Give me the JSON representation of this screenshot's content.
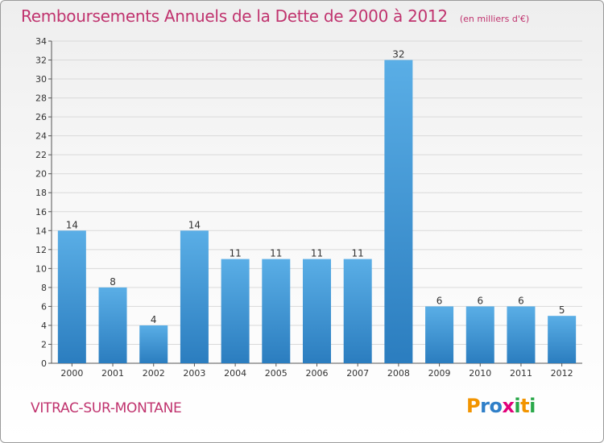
{
  "header": {
    "title": "Remboursements Annuels de la Dette de 2000 à 2012",
    "unit": "(en milliers d'€)"
  },
  "footer": {
    "commune": "VITRAC-SUR-MONTANE",
    "logo_text": "Proxiti",
    "logo_letters": [
      "P",
      "r",
      "o",
      "x",
      "i",
      "t",
      "i"
    ],
    "logo_colors": [
      "#f29400",
      "#2f7fc8",
      "#2f7fc8",
      "#e2007a",
      "#2aa84a",
      "#f29400",
      "#2aa84a"
    ]
  },
  "colors": {
    "bar_light": "#5aaee6",
    "bar_dark": "#2b7dbf",
    "accent": "#c0336e",
    "grid": "#d9d9d9"
  },
  "chart_data": {
    "type": "bar",
    "title": "Remboursements Annuels de la Dette de 2000 à 2012",
    "subtitle": "(en milliers d'€)",
    "xlabel": "",
    "ylabel": "",
    "categories": [
      "2000",
      "2001",
      "2002",
      "2003",
      "2004",
      "2005",
      "2006",
      "2007",
      "2008",
      "2009",
      "2010",
      "2011",
      "2012"
    ],
    "values": [
      14,
      8,
      4,
      14,
      11,
      11,
      11,
      11,
      32,
      6,
      6,
      6,
      5
    ],
    "ylim": [
      0,
      34
    ],
    "yticks": [
      0,
      2,
      4,
      6,
      8,
      10,
      12,
      14,
      16,
      18,
      20,
      22,
      24,
      26,
      28,
      30,
      32,
      34
    ],
    "grid": true
  }
}
